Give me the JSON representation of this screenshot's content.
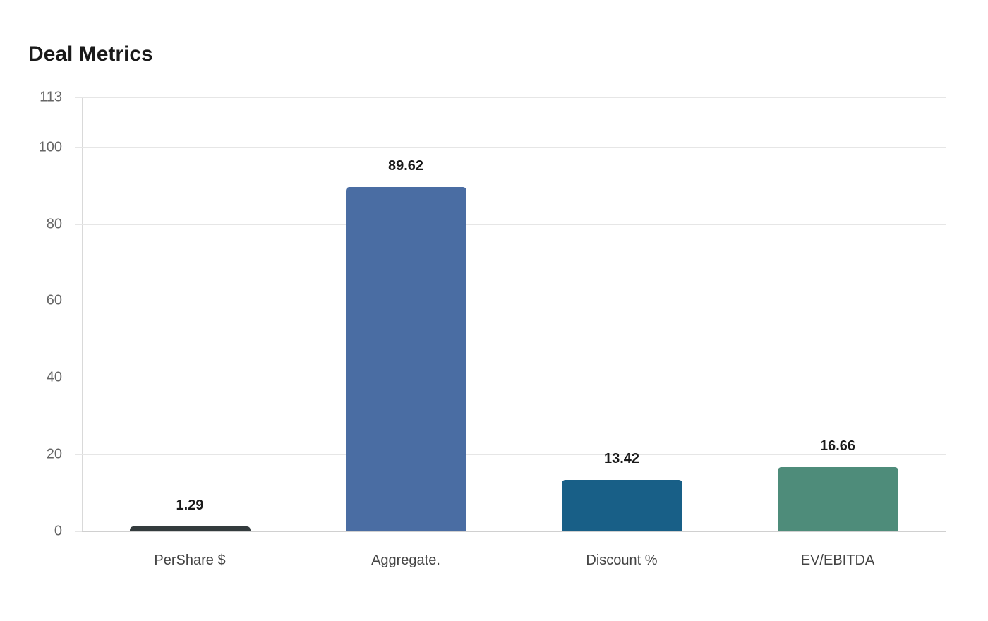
{
  "chart_data": {
    "type": "bar",
    "title": "Deal Metrics",
    "xlabel": "",
    "ylabel": "",
    "categories": [
      "PerShare $",
      "Aggregate.",
      "Discount %",
      "EV/EBITDA"
    ],
    "values": [
      1.29,
      89.62,
      13.42,
      16.66
    ],
    "colors": [
      "#333b3d",
      "#4a6da3",
      "#185f87",
      "#4e8c7a"
    ],
    "ylim": [
      0,
      113
    ],
    "yticks": [
      0,
      20,
      40,
      60,
      80,
      100,
      113
    ],
    "ytick_labels": [
      "0",
      "20",
      "40",
      "60",
      "80",
      "100",
      "113"
    ],
    "grid": true,
    "legend": null,
    "data_labels": [
      "1.29",
      "89.62",
      "13.42",
      "16.66"
    ]
  }
}
